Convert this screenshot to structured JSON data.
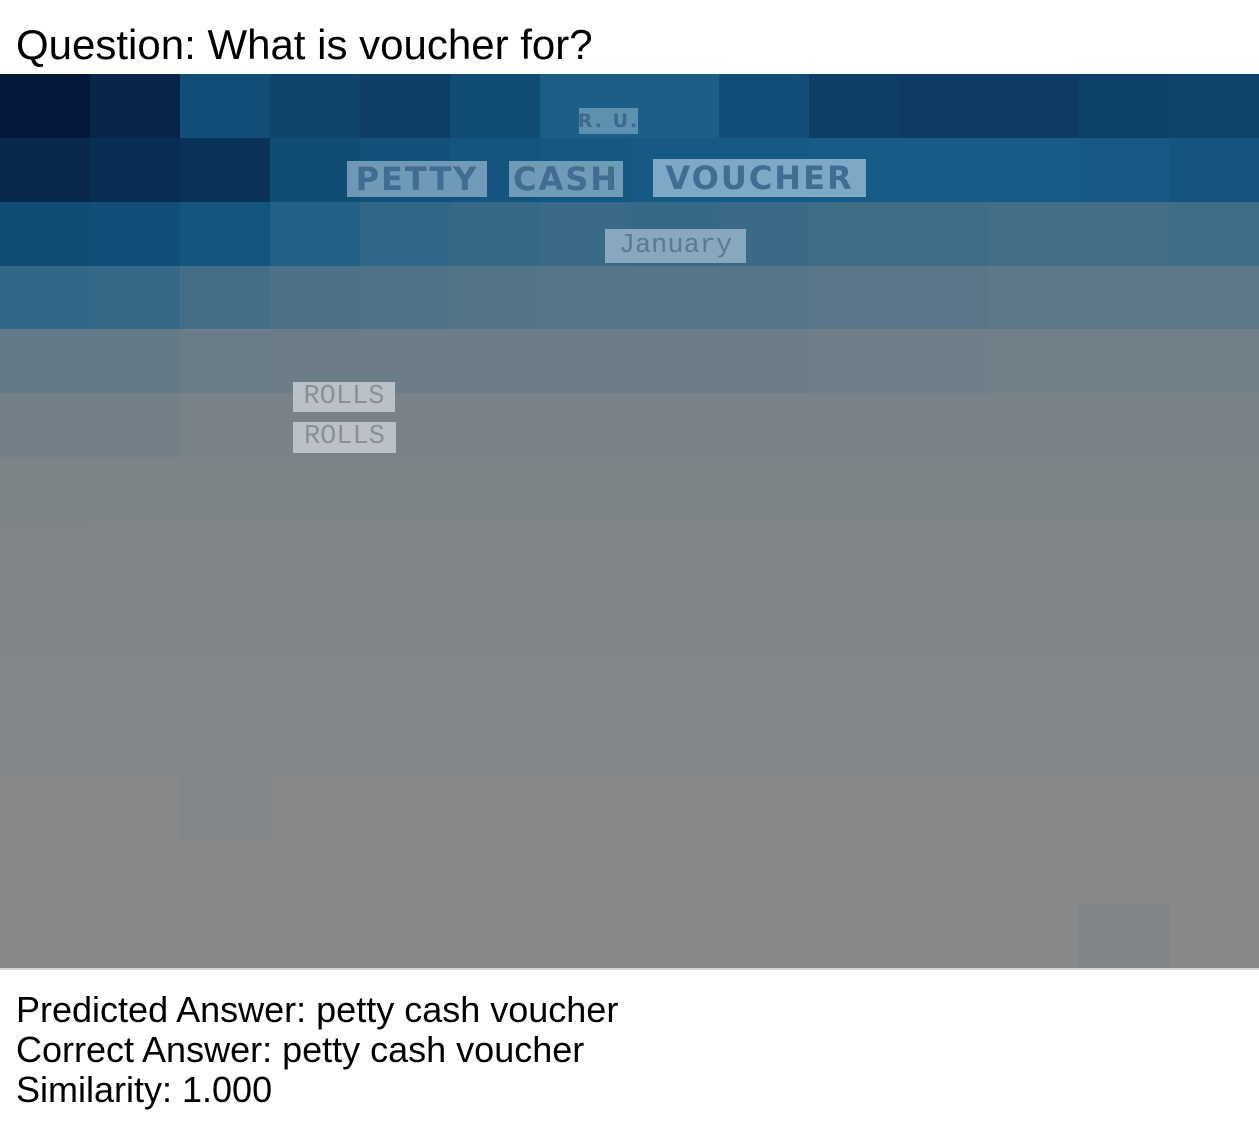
{
  "question": "Question: What is voucher for?",
  "document_words": {
    "ru": "R. U.",
    "petty": "PETTY",
    "cash": "CASH",
    "voucher": "VOUCHER",
    "month": "January",
    "rolls_1": "ROLLS",
    "rolls_2": "ROLLS"
  },
  "results": {
    "predicted": "Predicted Answer: petty cash voucher",
    "correct": "Correct Answer: petty cash voucher",
    "similarity": "Similarity: 1.000"
  },
  "heatmap_colors": {
    "low": "#888888",
    "high": "#03183a",
    "highlight_box": "#c8d4e0"
  }
}
